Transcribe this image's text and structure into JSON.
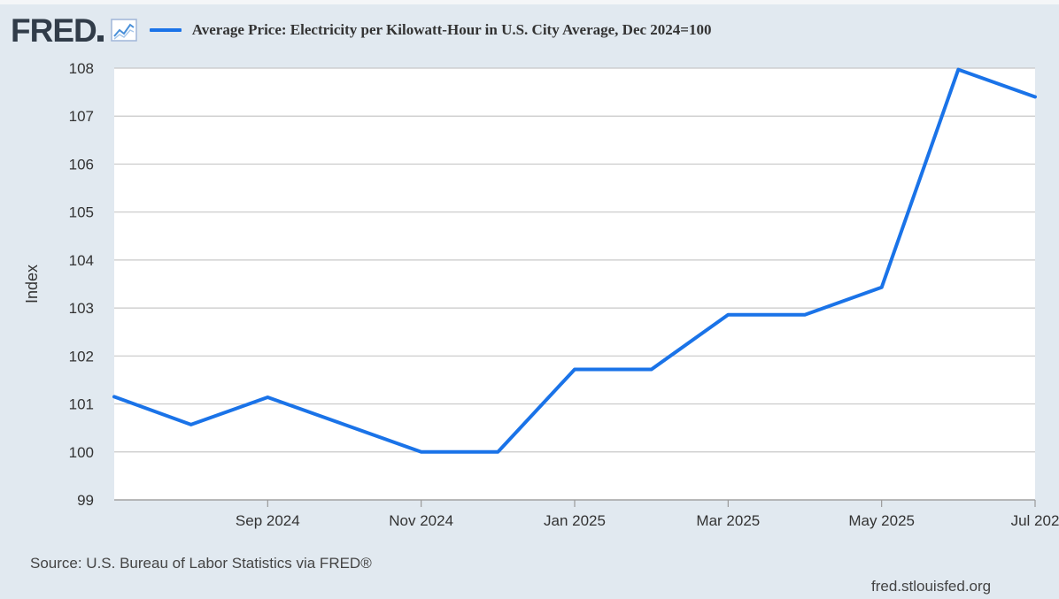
{
  "header": {
    "logo_text": "FRED",
    "logo_icon": "line-chart-icon",
    "title": "Average Price: Electricity per Kilowatt-Hour in U.S. City Average, Dec 2024=100"
  },
  "footer": {
    "source": "Source: U.S. Bureau of Labor Statistics via FRED®",
    "credit": "fred.stlouisfed.org"
  },
  "colors": {
    "background": "#e1e9f0",
    "plot_background": "#ffffff",
    "series_line": "#1a73e8",
    "grid": "#c8c8c8"
  },
  "chart_data": {
    "type": "line",
    "title": "Average Price: Electricity per Kilowatt-Hour in U.S. City Average, Dec 2024=100",
    "ylabel": "Index",
    "xlabel": "",
    "ylim": [
      99,
      108
    ],
    "yticks": [
      99,
      100,
      101,
      102,
      103,
      104,
      105,
      106,
      107,
      108
    ],
    "xlim": [
      "2024-07",
      "2025-07"
    ],
    "xticks": [
      {
        "x": "2024-09",
        "label": "Sep 2024"
      },
      {
        "x": "2024-11",
        "label": "Nov 2024"
      },
      {
        "x": "2025-01",
        "label": "Jan 2025"
      },
      {
        "x": "2025-03",
        "label": "Mar 2025"
      },
      {
        "x": "2025-05",
        "label": "May 2025"
      },
      {
        "x": "2025-07",
        "label": "Jul 202"
      }
    ],
    "grid": true,
    "legend": "top-left",
    "series": [
      {
        "name": "Average Price: Electricity per Kilowatt-Hour in U.S. City Average, Dec 2024=100",
        "x": [
          "2024-07",
          "2024-08",
          "2024-09",
          "2024-10",
          "2024-11",
          "2024-12",
          "2025-01",
          "2025-02",
          "2025-03",
          "2025-04",
          "2025-05",
          "2025-06",
          "2025-07"
        ],
        "values": [
          101.15,
          100.57,
          101.14,
          100.57,
          100.0,
          100.0,
          101.72,
          101.72,
          102.86,
          102.86,
          103.43,
          107.97,
          107.4
        ]
      }
    ]
  }
}
